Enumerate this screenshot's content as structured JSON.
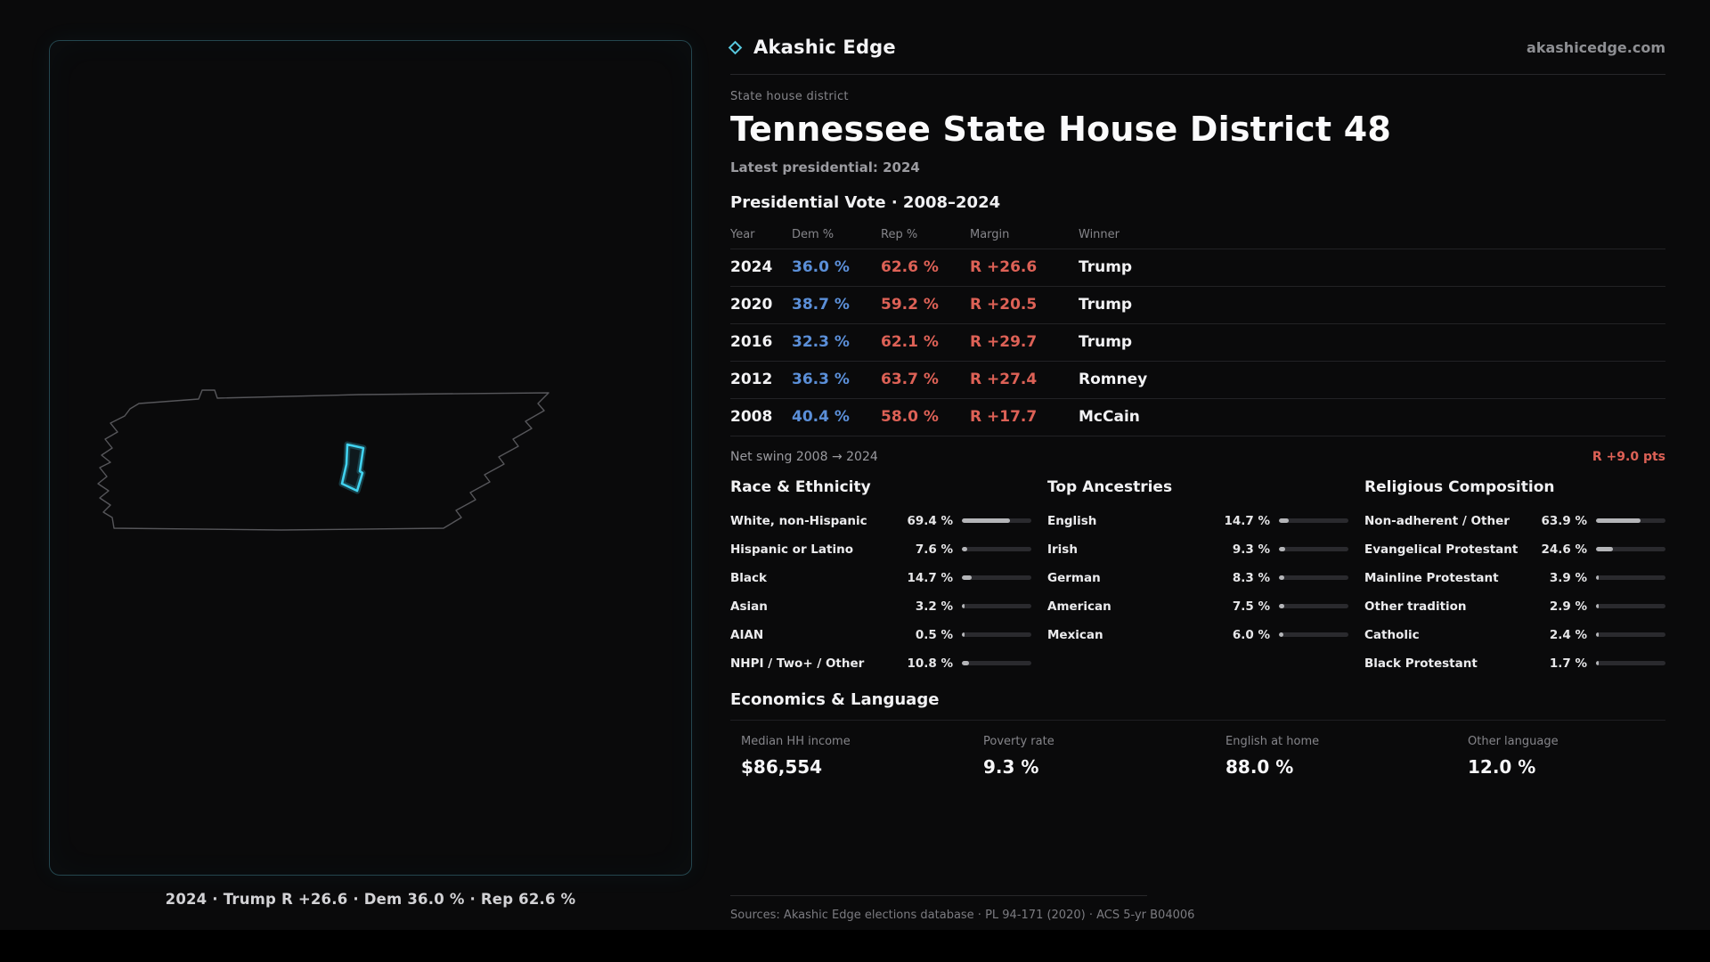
{
  "brand": {
    "name": "Akashic Edge",
    "site": "akashicedge.com"
  },
  "map": {
    "caption": "2024 · Trump R +26.6 · Dem 36.0 % · Rep 62.6 %"
  },
  "header": {
    "kicker": "State house district",
    "title": "Tennessee State House District 48",
    "latest": "Latest presidential: 2024"
  },
  "presidential": {
    "heading": "Presidential Vote · 2008–2024",
    "columns": {
      "year": "Year",
      "dem": "Dem %",
      "rep": "Rep %",
      "margin": "Margin",
      "winner": "Winner"
    },
    "rows": [
      {
        "year": "2024",
        "dem": "36.0 %",
        "rep": "62.6 %",
        "margin": "R +26.6",
        "winner": "Trump"
      },
      {
        "year": "2020",
        "dem": "38.7 %",
        "rep": "59.2 %",
        "margin": "R +20.5",
        "winner": "Trump"
      },
      {
        "year": "2016",
        "dem": "32.3 %",
        "rep": "62.1 %",
        "margin": "R +29.7",
        "winner": "Trump"
      },
      {
        "year": "2012",
        "dem": "36.3 %",
        "rep": "63.7 %",
        "margin": "R +27.4",
        "winner": "Romney"
      },
      {
        "year": "2008",
        "dem": "40.4 %",
        "rep": "58.0 %",
        "margin": "R +17.7",
        "winner": "McCain"
      }
    ],
    "net_swing_label": "Net swing 2008 → 2024",
    "net_swing_value": "R +9.0 pts"
  },
  "race": {
    "heading": "Race & Ethnicity",
    "rows": [
      {
        "label": "White, non-Hispanic",
        "value": "69.4 %",
        "pct": 69.4
      },
      {
        "label": "Hispanic or Latino",
        "value": "7.6 %",
        "pct": 7.6
      },
      {
        "label": "Black",
        "value": "14.7 %",
        "pct": 14.7
      },
      {
        "label": "Asian",
        "value": "3.2 %",
        "pct": 3.2
      },
      {
        "label": "AIAN",
        "value": "0.5 %",
        "pct": 0.5
      },
      {
        "label": "NHPI / Two+ / Other",
        "value": "10.8 %",
        "pct": 10.8
      }
    ]
  },
  "ancestries": {
    "heading": "Top Ancestries",
    "rows": [
      {
        "label": "English",
        "value": "14.7 %",
        "pct": 14.7
      },
      {
        "label": "Irish",
        "value": "9.3 %",
        "pct": 9.3
      },
      {
        "label": "German",
        "value": "8.3 %",
        "pct": 8.3
      },
      {
        "label": "American",
        "value": "7.5 %",
        "pct": 7.5
      },
      {
        "label": "Mexican",
        "value": "6.0 %",
        "pct": 6.0
      }
    ]
  },
  "religion": {
    "heading": "Religious Composition",
    "rows": [
      {
        "label": "Non-adherent / Other",
        "value": "63.9 %",
        "pct": 63.9
      },
      {
        "label": "Evangelical Protestant",
        "value": "24.6 %",
        "pct": 24.6
      },
      {
        "label": "Mainline Protestant",
        "value": "3.9 %",
        "pct": 3.9
      },
      {
        "label": "Other tradition",
        "value": "2.9 %",
        "pct": 2.9
      },
      {
        "label": "Catholic",
        "value": "2.4 %",
        "pct": 2.4
      },
      {
        "label": "Black Protestant",
        "value": "1.7 %",
        "pct": 1.7
      }
    ]
  },
  "economics": {
    "heading": "Economics & Language",
    "stats": [
      {
        "label": "Median HH income",
        "value": "$86,554"
      },
      {
        "label": "Poverty rate",
        "value": "9.3 %"
      },
      {
        "label": "English at home",
        "value": "88.0 %"
      },
      {
        "label": "Other language",
        "value": "12.0 %"
      }
    ]
  },
  "footer": {
    "sources": "Sources: Akashic Edge elections database · PL 94-171 (2020) · ACS 5-yr B04006",
    "permalink": "akashicedge.com/state-house/tn-hd-48"
  },
  "colors": {
    "dem": "#5b8fd8",
    "rep": "#dd6156",
    "accent": "#41d2ef"
  },
  "chart_data": [
    {
      "type": "table",
      "title": "Presidential Vote · 2008–2024",
      "columns": [
        "Year",
        "Dem %",
        "Rep %",
        "Margin",
        "Winner"
      ],
      "rows": [
        [
          2024,
          36.0,
          62.6,
          "R +26.6",
          "Trump"
        ],
        [
          2020,
          38.7,
          59.2,
          "R +20.5",
          "Trump"
        ],
        [
          2016,
          32.3,
          62.1,
          "R +29.7",
          "Trump"
        ],
        [
          2012,
          36.3,
          63.7,
          "R +27.4",
          "Romney"
        ],
        [
          2008,
          40.4,
          58.0,
          "R +17.7",
          "McCain"
        ]
      ],
      "annotation": "Net swing 2008 → 2024: R +9.0 pts"
    },
    {
      "type": "bar",
      "orientation": "horizontal",
      "title": "Race & Ethnicity",
      "categories": [
        "White, non-Hispanic",
        "Hispanic or Latino",
        "Black",
        "Asian",
        "AIAN",
        "NHPI / Two+ / Other"
      ],
      "values": [
        69.4,
        7.6,
        14.7,
        3.2,
        0.5,
        10.8
      ],
      "unit": "%",
      "xlim": [
        0,
        100
      ]
    },
    {
      "type": "bar",
      "orientation": "horizontal",
      "title": "Top Ancestries",
      "categories": [
        "English",
        "Irish",
        "German",
        "American",
        "Mexican"
      ],
      "values": [
        14.7,
        9.3,
        8.3,
        7.5,
        6.0
      ],
      "unit": "%",
      "xlim": [
        0,
        100
      ]
    },
    {
      "type": "bar",
      "orientation": "horizontal",
      "title": "Religious Composition",
      "categories": [
        "Non-adherent / Other",
        "Evangelical Protestant",
        "Mainline Protestant",
        "Other tradition",
        "Catholic",
        "Black Protestant"
      ],
      "values": [
        63.9,
        24.6,
        3.9,
        2.9,
        2.4,
        1.7
      ],
      "unit": "%",
      "xlim": [
        0,
        100
      ]
    },
    {
      "type": "table",
      "title": "Economics & Language",
      "columns": [
        "Median HH income",
        "Poverty rate",
        "English at home",
        "Other language"
      ],
      "rows": [
        [
          "$86,554",
          "9.3 %",
          "88.0 %",
          "12.0 %"
        ]
      ]
    }
  ]
}
